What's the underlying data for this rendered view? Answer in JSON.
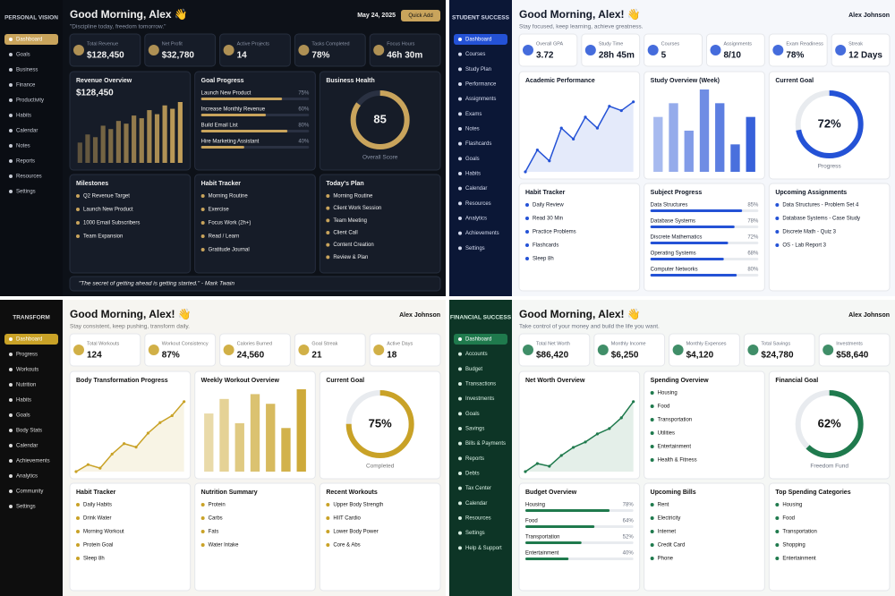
{
  "dashboards": [
    {
      "brand": "PERSONAL VISION",
      "theme": {
        "bg": "#0d1118",
        "card": "#161c28",
        "text": "#f1f1f1",
        "muted": "#8a93a6",
        "accent": "#c9a45c",
        "sidebar": "#0a0d13",
        "sidebar_text": "#c8ccd6"
      },
      "nav": [
        "Dashboard",
        "Goals",
        "Business",
        "Finance",
        "Productivity",
        "Habits",
        "Calendar",
        "Notes",
        "Reports",
        "Resources",
        "Settings"
      ],
      "greeting": "Good Morning, Alex 👋",
      "subtitle": "\"Discipline today, freedom tomorrow.\"",
      "corner": "May 24, 2025",
      "action": "Quick Add",
      "stats": [
        {
          "label": "Total Revenue",
          "value": "$128,450"
        },
        {
          "label": "Net Profit",
          "value": "$32,780"
        },
        {
          "label": "Active Projects",
          "value": "14"
        },
        {
          "label": "Tasks Completed",
          "value": "78%"
        },
        {
          "label": "Focus Hours",
          "value": "46h 30m"
        }
      ],
      "panels": [
        {
          "title": "Revenue Overview",
          "type": "bars",
          "headline": "$128,450",
          "values": [
            30,
            42,
            38,
            55,
            50,
            62,
            58,
            70,
            66,
            78,
            72,
            85,
            80,
            90
          ]
        },
        {
          "title": "Goal Progress",
          "type": "progress",
          "items": [
            {
              "name": "Launch New Product",
              "value": 75,
              "label": "75%"
            },
            {
              "name": "Increase Monthly Revenue",
              "value": 60,
              "label": "60%"
            },
            {
              "name": "Build Email List",
              "value": 80,
              "label": "80%"
            },
            {
              "name": "Hire Marketing Assistant",
              "value": 40,
              "label": "40%"
            }
          ]
        },
        {
          "title": "Business Health",
          "type": "donut",
          "value": 85,
          "value_label": "85",
          "caption": "Overall Score"
        },
        {
          "title": "Milestones",
          "type": "list",
          "items": [
            "Q2 Revenue Target",
            "Launch New Product",
            "1000 Email Subscribers",
            "Team Expansion"
          ]
        },
        {
          "title": "Habit Tracker",
          "type": "list",
          "items": [
            "Morning Routine",
            "Exercise",
            "Focus Work (2h+)",
            "Read / Learn",
            "Gratitude Journal"
          ]
        },
        {
          "title": "Today's Plan",
          "type": "list",
          "items": [
            "Morning Routine",
            "Client Work Session",
            "Team Meeting",
            "Client Call",
            "Content Creation",
            "Review & Plan"
          ]
        }
      ],
      "footer": "\"The secret of getting ahead is getting started.\" - Mark Twain"
    },
    {
      "brand": "STUDENT SUCCESS",
      "theme": {
        "bg": "#f5f7fb",
        "card": "#ffffff",
        "text": "#111827",
        "muted": "#6b7280",
        "accent": "#2452d6",
        "sidebar": "#0b1736",
        "sidebar_text": "#d6dcf0"
      },
      "nav": [
        "Dashboard",
        "Courses",
        "Study Plan",
        "Performance",
        "Assignments",
        "Exams",
        "Notes",
        "Flashcards",
        "Goals",
        "Habits",
        "Calendar",
        "Resources",
        "Analytics",
        "Achievements",
        "Settings"
      ],
      "greeting": "Good Morning, Alex! 👋",
      "subtitle": "Stay focused, keep learning, achieve greatness.",
      "corner": "Alex Johnson",
      "stats": [
        {
          "label": "Overall GPA",
          "value": "3.72"
        },
        {
          "label": "Study Time",
          "value": "28h 45m"
        },
        {
          "label": "Courses",
          "value": "5"
        },
        {
          "label": "Assignments",
          "value": "8/10"
        },
        {
          "label": "Exam Readiness",
          "value": "78%"
        },
        {
          "label": "Streak",
          "value": "12 Days"
        }
      ],
      "panels": [
        {
          "title": "Academic Performance",
          "type": "line",
          "values": [
            3.4,
            3.5,
            3.45,
            3.6,
            3.55,
            3.65,
            3.6,
            3.7,
            3.68,
            3.72
          ]
        },
        {
          "title": "Study Overview (Week)",
          "type": "bars",
          "values": [
            4,
            5,
            3,
            6,
            5,
            2,
            4
          ]
        },
        {
          "title": "Current Goal",
          "type": "donut",
          "value": 72,
          "value_label": "72%",
          "caption": "Progress"
        },
        {
          "title": "Habit Tracker",
          "type": "list",
          "items": [
            "Daily Review",
            "Read 30 Min",
            "Practice Problems",
            "Flashcards",
            "Sleep 8h"
          ]
        },
        {
          "title": "Subject Progress",
          "type": "progress",
          "items": [
            {
              "name": "Data Structures",
              "value": 85,
              "label": "85%"
            },
            {
              "name": "Database Systems",
              "value": 78,
              "label": "78%"
            },
            {
              "name": "Discrete Mathematics",
              "value": 72,
              "label": "72%"
            },
            {
              "name": "Operating Systems",
              "value": 68,
              "label": "68%"
            },
            {
              "name": "Computer Networks",
              "value": 80,
              "label": "80%"
            }
          ]
        },
        {
          "title": "Upcoming Assignments",
          "type": "list",
          "items": [
            "Data Structures - Problem Set 4",
            "Database Systems - Case Study",
            "Discrete Math - Quiz 3",
            "OS - Lab Report 3"
          ]
        }
      ]
    },
    {
      "brand": "TRANSFORM",
      "theme": {
        "bg": "#f6f5f1",
        "card": "#ffffff",
        "text": "#111111",
        "muted": "#777777",
        "accent": "#c9a227",
        "sidebar": "#0e0e0e",
        "sidebar_text": "#dddddd"
      },
      "nav": [
        "Dashboard",
        "Progress",
        "Workouts",
        "Nutrition",
        "Habits",
        "Goals",
        "Body Stats",
        "Calendar",
        "Achievements",
        "Analytics",
        "Community",
        "Settings"
      ],
      "greeting": "Good Morning, Alex! 👋",
      "subtitle": "Stay consistent, keep pushing, transform daily.",
      "corner": "Alex Johnson",
      "stats": [
        {
          "label": "Total Workouts",
          "value": "124"
        },
        {
          "label": "Workout Consistency",
          "value": "87%"
        },
        {
          "label": "Calories Burned",
          "value": "24,560"
        },
        {
          "label": "Goal Streak",
          "value": "21"
        },
        {
          "label": "Active Days",
          "value": "18"
        }
      ],
      "panels": [
        {
          "title": "Body Transformation Progress",
          "type": "line",
          "values": [
            62,
            64,
            63,
            67,
            70,
            69,
            73,
            76,
            78,
            82
          ]
        },
        {
          "title": "Weekly Workout Overview",
          "type": "bars",
          "values": [
            60,
            75,
            50,
            80,
            70,
            45,
            85
          ]
        },
        {
          "title": "Current Goal",
          "type": "donut",
          "value": 75,
          "value_label": "75%",
          "caption": "Completed"
        },
        {
          "title": "Habit Tracker",
          "type": "list",
          "items": [
            "Daily Habits",
            "Drink Water",
            "Morning Workout",
            "Protein Goal",
            "Sleep 8h"
          ]
        },
        {
          "title": "Nutrition Summary",
          "type": "list",
          "items": [
            "Protein",
            "Carbs",
            "Fats",
            "Water Intake"
          ]
        },
        {
          "title": "Recent Workouts",
          "type": "list",
          "items": [
            "Upper Body Strength",
            "HIIT Cardio",
            "Lower Body Power",
            "Core & Abs"
          ]
        }
      ]
    },
    {
      "brand": "FINANCIAL SUCCESS",
      "theme": {
        "bg": "#f5f7f5",
        "card": "#ffffff",
        "text": "#111111",
        "muted": "#6b7280",
        "accent": "#1f7a4d",
        "sidebar": "#0d3526",
        "sidebar_text": "#d8eee2"
      },
      "nav": [
        "Dashboard",
        "Accounts",
        "Budget",
        "Transactions",
        "Investments",
        "Goals",
        "Savings",
        "Bills & Payments",
        "Reports",
        "Debts",
        "Tax Center",
        "Calendar",
        "Resources",
        "Settings",
        "Help & Support"
      ],
      "greeting": "Good Morning, Alex! 👋",
      "subtitle": "Take control of your money and build the life you want.",
      "corner": "Alex Johnson",
      "stats": [
        {
          "label": "Total Net Worth",
          "value": "$86,420"
        },
        {
          "label": "Monthly Income",
          "value": "$6,250"
        },
        {
          "label": "Monthly Expenses",
          "value": "$4,120"
        },
        {
          "label": "Total Savings",
          "value": "$24,780"
        },
        {
          "label": "Investments",
          "value": "$58,640"
        }
      ],
      "panels": [
        {
          "title": "Net Worth Overview",
          "type": "line",
          "values": [
            60,
            63,
            62,
            66,
            69,
            71,
            74,
            76,
            80,
            86
          ]
        },
        {
          "title": "Spending Overview",
          "type": "list",
          "items": [
            "Housing",
            "Food",
            "Transportation",
            "Utilities",
            "Entertainment",
            "Health & Fitness"
          ]
        },
        {
          "title": "Financial Goal",
          "type": "donut",
          "value": 62,
          "value_label": "62%",
          "caption": "Freedom Fund"
        },
        {
          "title": "Budget Overview",
          "type": "progress",
          "items": [
            {
              "name": "Housing",
              "value": 78,
              "label": "78%"
            },
            {
              "name": "Food",
              "value": 64,
              "label": "64%"
            },
            {
              "name": "Transportation",
              "value": 52,
              "label": "52%"
            },
            {
              "name": "Entertainment",
              "value": 40,
              "label": "40%"
            }
          ]
        },
        {
          "title": "Upcoming Bills",
          "type": "list",
          "items": [
            "Rent",
            "Electricity",
            "Internet",
            "Credit Card",
            "Phone"
          ]
        },
        {
          "title": "Top Spending Categories",
          "type": "list",
          "items": [
            "Housing",
            "Food",
            "Transportation",
            "Shopping",
            "Entertainment"
          ]
        }
      ]
    }
  ]
}
